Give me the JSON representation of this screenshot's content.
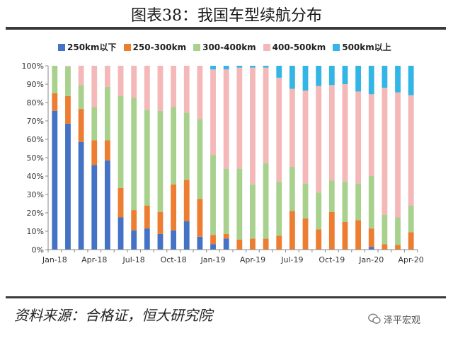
{
  "header": {
    "title": "图表38：我国车型续航分布"
  },
  "footer": {
    "source": "资料来源：合格证，恒大研究院",
    "watermark": "泽平宏观"
  },
  "colors": {
    "s250": "#4472c4",
    "s250300": "#ed7d31",
    "s300400": "#a9d18e",
    "s400500": "#f4b8b8",
    "s500": "#33b5e5"
  },
  "chart_data": {
    "type": "bar",
    "stacked": true,
    "percent": true,
    "title": "",
    "ylim": [
      0,
      100
    ],
    "yticks": [
      "0%",
      "10%",
      "20%",
      "30%",
      "40%",
      "50%",
      "60%",
      "70%",
      "80%",
      "90%",
      "100%"
    ],
    "categories": [
      "Jan-18",
      "Feb-18",
      "Mar-18",
      "Apr-18",
      "May-18",
      "Jun-18",
      "Jul-18",
      "Aug-18",
      "Sep-18",
      "Oct-18",
      "Nov-18",
      "Dec-18",
      "Jan-19",
      "Feb-19",
      "Mar-19",
      "Apr-19",
      "May-19",
      "Jun-19",
      "Jul-19",
      "Aug-19",
      "Sep-19",
      "Oct-19",
      "Nov-19",
      "Dec-19",
      "Jan-20",
      "Feb-20",
      "Mar-20",
      "Apr-20"
    ],
    "tick_labels": [
      "Jan-18",
      "",
      "",
      "Apr-18",
      "",
      "",
      "Jul-18",
      "",
      "",
      "Oct-18",
      "",
      "",
      "Jan-19",
      "",
      "",
      "Apr-19",
      "",
      "",
      "Jul-19",
      "",
      "",
      "Oct-19",
      "",
      "",
      "Jan-20",
      "",
      "",
      "Apr-20"
    ],
    "legend_position": "top",
    "series": [
      {
        "name": "250km以下",
        "color_key": "s250",
        "values": [
          75.5,
          68.5,
          58.5,
          46,
          48.5,
          17.5,
          10.5,
          11.5,
          8.5,
          10.5,
          15.5,
          7,
          3,
          6,
          0,
          0,
          0,
          0,
          0,
          0,
          0,
          0,
          0,
          0,
          1.5,
          0,
          0,
          0
        ]
      },
      {
        "name": "250-300km",
        "color_key": "s250300",
        "values": [
          9.5,
          15,
          18,
          13.5,
          11,
          16,
          11,
          12.5,
          12,
          25,
          22.5,
          20.5,
          5,
          2.5,
          5.5,
          6,
          6,
          7.5,
          21,
          17,
          11,
          20.5,
          15,
          16,
          10,
          3,
          2.5,
          9.5
        ]
      },
      {
        "name": "300-400km",
        "color_key": "s300400",
        "values": [
          15,
          16,
          13,
          18,
          29,
          50,
          61,
          52,
          55,
          42,
          36.5,
          43.5,
          43.5,
          35.5,
          38.5,
          29.5,
          41,
          29.5,
          24,
          19,
          20,
          17,
          22,
          20,
          28.5,
          16,
          15,
          14.5
        ]
      },
      {
        "name": "400-500km",
        "color_key": "s400500",
        "values": [
          0,
          0.5,
          10.5,
          22.5,
          11.5,
          16.5,
          17.5,
          24,
          24.5,
          22.5,
          25.5,
          29,
          46.5,
          54,
          55,
          63.5,
          52,
          56.5,
          42.5,
          50.5,
          58,
          52,
          53,
          50,
          44.5,
          69,
          68,
          60
        ]
      },
      {
        "name": "500km以上",
        "color_key": "s500",
        "values": [
          0,
          0,
          0,
          0,
          0,
          0,
          0,
          0,
          0,
          0,
          0,
          0,
          2,
          2,
          1,
          1,
          1,
          6.5,
          12.5,
          13.5,
          11,
          10.5,
          10,
          14,
          15.5,
          12,
          14.5,
          16
        ]
      }
    ]
  }
}
